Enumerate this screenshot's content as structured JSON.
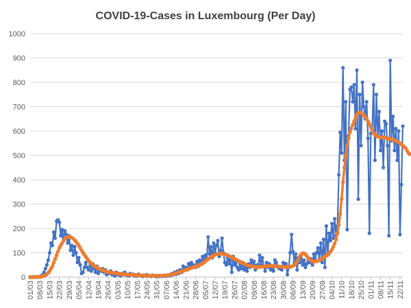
{
  "chart_data": {
    "type": "line",
    "title": "COVID-19-Cases in Luxembourg (Per Day)",
    "xlabel": "",
    "ylabel": "",
    "ylim": [
      0,
      1000
    ],
    "yticks": [
      0,
      100,
      200,
      300,
      400,
      500,
      600,
      700,
      800,
      900,
      1000
    ],
    "xticks": [
      "01/03",
      "08/03",
      "15/03",
      "22/03",
      "29/03",
      "05/04",
      "12/04",
      "19/04",
      "26/04",
      "03/05",
      "10/05",
      "17/05",
      "24/05",
      "31/05",
      "07/06",
      "14/06",
      "21/06",
      "28/06",
      "05/07",
      "12/07",
      "19/07",
      "26/07",
      "02/08",
      "09/08",
      "16/08",
      "23/08",
      "30/08",
      "06/09",
      "13/09",
      "20/09",
      "27/09",
      "04/10",
      "11/10",
      "18/10",
      "25/10",
      "01/11",
      "08/11",
      "15/11",
      "22/11"
    ],
    "grid": true,
    "legend": "none",
    "colors": {
      "daily": "#4472C4",
      "average": "#ED7D31"
    },
    "series": [
      {
        "key": "daily",
        "values": [
          1,
          0,
          1,
          0,
          1,
          2,
          1,
          3,
          5,
          10,
          20,
          35,
          50,
          70,
          100,
          140,
          130,
          185,
          160,
          230,
          235,
          225,
          170,
          195,
          160,
          190,
          175,
          140,
          170,
          110,
          130,
          90,
          125,
          100,
          60,
          80,
          50,
          15,
          20,
          40,
          60,
          40,
          30,
          60,
          25,
          55,
          35,
          20,
          45,
          15,
          30,
          25,
          35,
          20,
          30,
          10,
          20,
          15,
          25,
          10,
          15,
          5,
          20,
          10,
          15,
          5,
          15,
          10,
          20,
          8,
          10,
          5,
          15,
          10,
          12,
          5,
          10,
          5,
          12,
          8,
          5,
          3,
          8,
          5,
          10,
          4,
          6,
          3,
          8,
          5,
          4,
          2,
          6,
          3,
          5,
          3,
          7,
          4,
          8,
          5,
          10,
          6,
          15,
          10,
          20,
          12,
          25,
          15,
          30,
          20,
          45,
          35,
          40,
          30,
          55,
          50,
          60,
          45,
          50,
          40,
          65,
          45,
          70,
          55,
          85,
          60,
          90,
          75,
          165,
          95,
          125,
          80,
          140,
          100,
          130,
          150,
          85,
          110,
          160,
          100,
          60,
          50,
          80,
          55,
          70,
          20,
          85,
          50,
          60,
          40,
          30,
          55,
          35,
          60,
          30,
          45,
          25,
          55,
          40,
          70,
          45,
          65,
          30,
          50,
          40,
          90,
          50,
          80,
          45,
          25,
          60,
          40,
          55,
          30,
          45,
          25,
          70,
          60,
          45,
          35,
          40,
          30,
          60,
          45,
          55,
          10,
          40,
          100,
          175,
          105,
          60,
          95,
          30,
          80,
          60,
          90,
          50,
          70,
          40,
          55,
          80,
          60,
          75,
          50,
          95,
          65,
          100,
          120,
          75,
          140,
          60,
          155,
          40,
          210,
          90,
          180,
          150,
          220,
          160,
          240,
          170,
          210,
          420,
          595,
          510,
          860,
          480,
          720,
          195,
          580,
          770,
          780,
          720,
          790,
          610,
          850,
          320,
          750,
          540,
          800,
          700,
          650,
          720,
          570,
          180,
          590,
          600,
          790,
          480,
          750,
          580,
          680,
          520,
          600,
          450,
          640,
          630,
          540,
          170,
          890,
          560,
          660,
          520,
          610,
          480,
          600,
          175,
          380,
          620
        ]
      },
      {
        "key": "average",
        "values": [
          0,
          0,
          0,
          0,
          0,
          1,
          1,
          1,
          2,
          3,
          5,
          8,
          12,
          18,
          25,
          35,
          45,
          60,
          75,
          90,
          105,
          120,
          130,
          140,
          150,
          158,
          163,
          165,
          166,
          165,
          162,
          158,
          152,
          145,
          138,
          130,
          120,
          110,
          100,
          92,
          84,
          76,
          68,
          62,
          56,
          51,
          47,
          43,
          40,
          37,
          34,
          31,
          29,
          27,
          25,
          23,
          21,
          20,
          19,
          18,
          17,
          16,
          15,
          14,
          14,
          13,
          13,
          12,
          12,
          11,
          11,
          10,
          10,
          10,
          9,
          9,
          9,
          8,
          8,
          8,
          7,
          7,
          7,
          6,
          6,
          6,
          6,
          6,
          6,
          6,
          6,
          6,
          6,
          6,
          6,
          6,
          7,
          7,
          8,
          8,
          9,
          10,
          11,
          12,
          14,
          16,
          18,
          20,
          22,
          24,
          26,
          28,
          30,
          32,
          34,
          36,
          38,
          40,
          42,
          44,
          46,
          48,
          50,
          53,
          56,
          60,
          65,
          70,
          74,
          78,
          82,
          86,
          89,
          92,
          94,
          95,
          96,
          96,
          96,
          95,
          94,
          92,
          90,
          87,
          84,
          81,
          78,
          75,
          72,
          69,
          66,
          63,
          60,
          57,
          54,
          52,
          50,
          48,
          46,
          45,
          44,
          43,
          42,
          42,
          42,
          42,
          42,
          43,
          44,
          44,
          45,
          46,
          46,
          46,
          46,
          45,
          45,
          44,
          44,
          43,
          43,
          43,
          42,
          42,
          42,
          42,
          42,
          43,
          44,
          46,
          50,
          56,
          64,
          74,
          86,
          94,
          98,
          98,
          94,
          86,
          78,
          72,
          68,
          65,
          64,
          64,
          65,
          67,
          70,
          73,
          76,
          80,
          84,
          88,
          92,
          97,
          104,
          113,
          124,
          138,
          155,
          180,
          215,
          260,
          320,
          390,
          450,
          500,
          540,
          570,
          595,
          612,
          625,
          640,
          655,
          668,
          675,
          676,
          674,
          670,
          665,
          658,
          650,
          640,
          628,
          615,
          602,
          592,
          585,
          580,
          577,
          575,
          574,
          574,
          573,
          572,
          571,
          570,
          569,
          568,
          566,
          564,
          562,
          560,
          557,
          554,
          550,
          545,
          540,
          535,
          530,
          520,
          510,
          505
        ]
      }
    ]
  }
}
